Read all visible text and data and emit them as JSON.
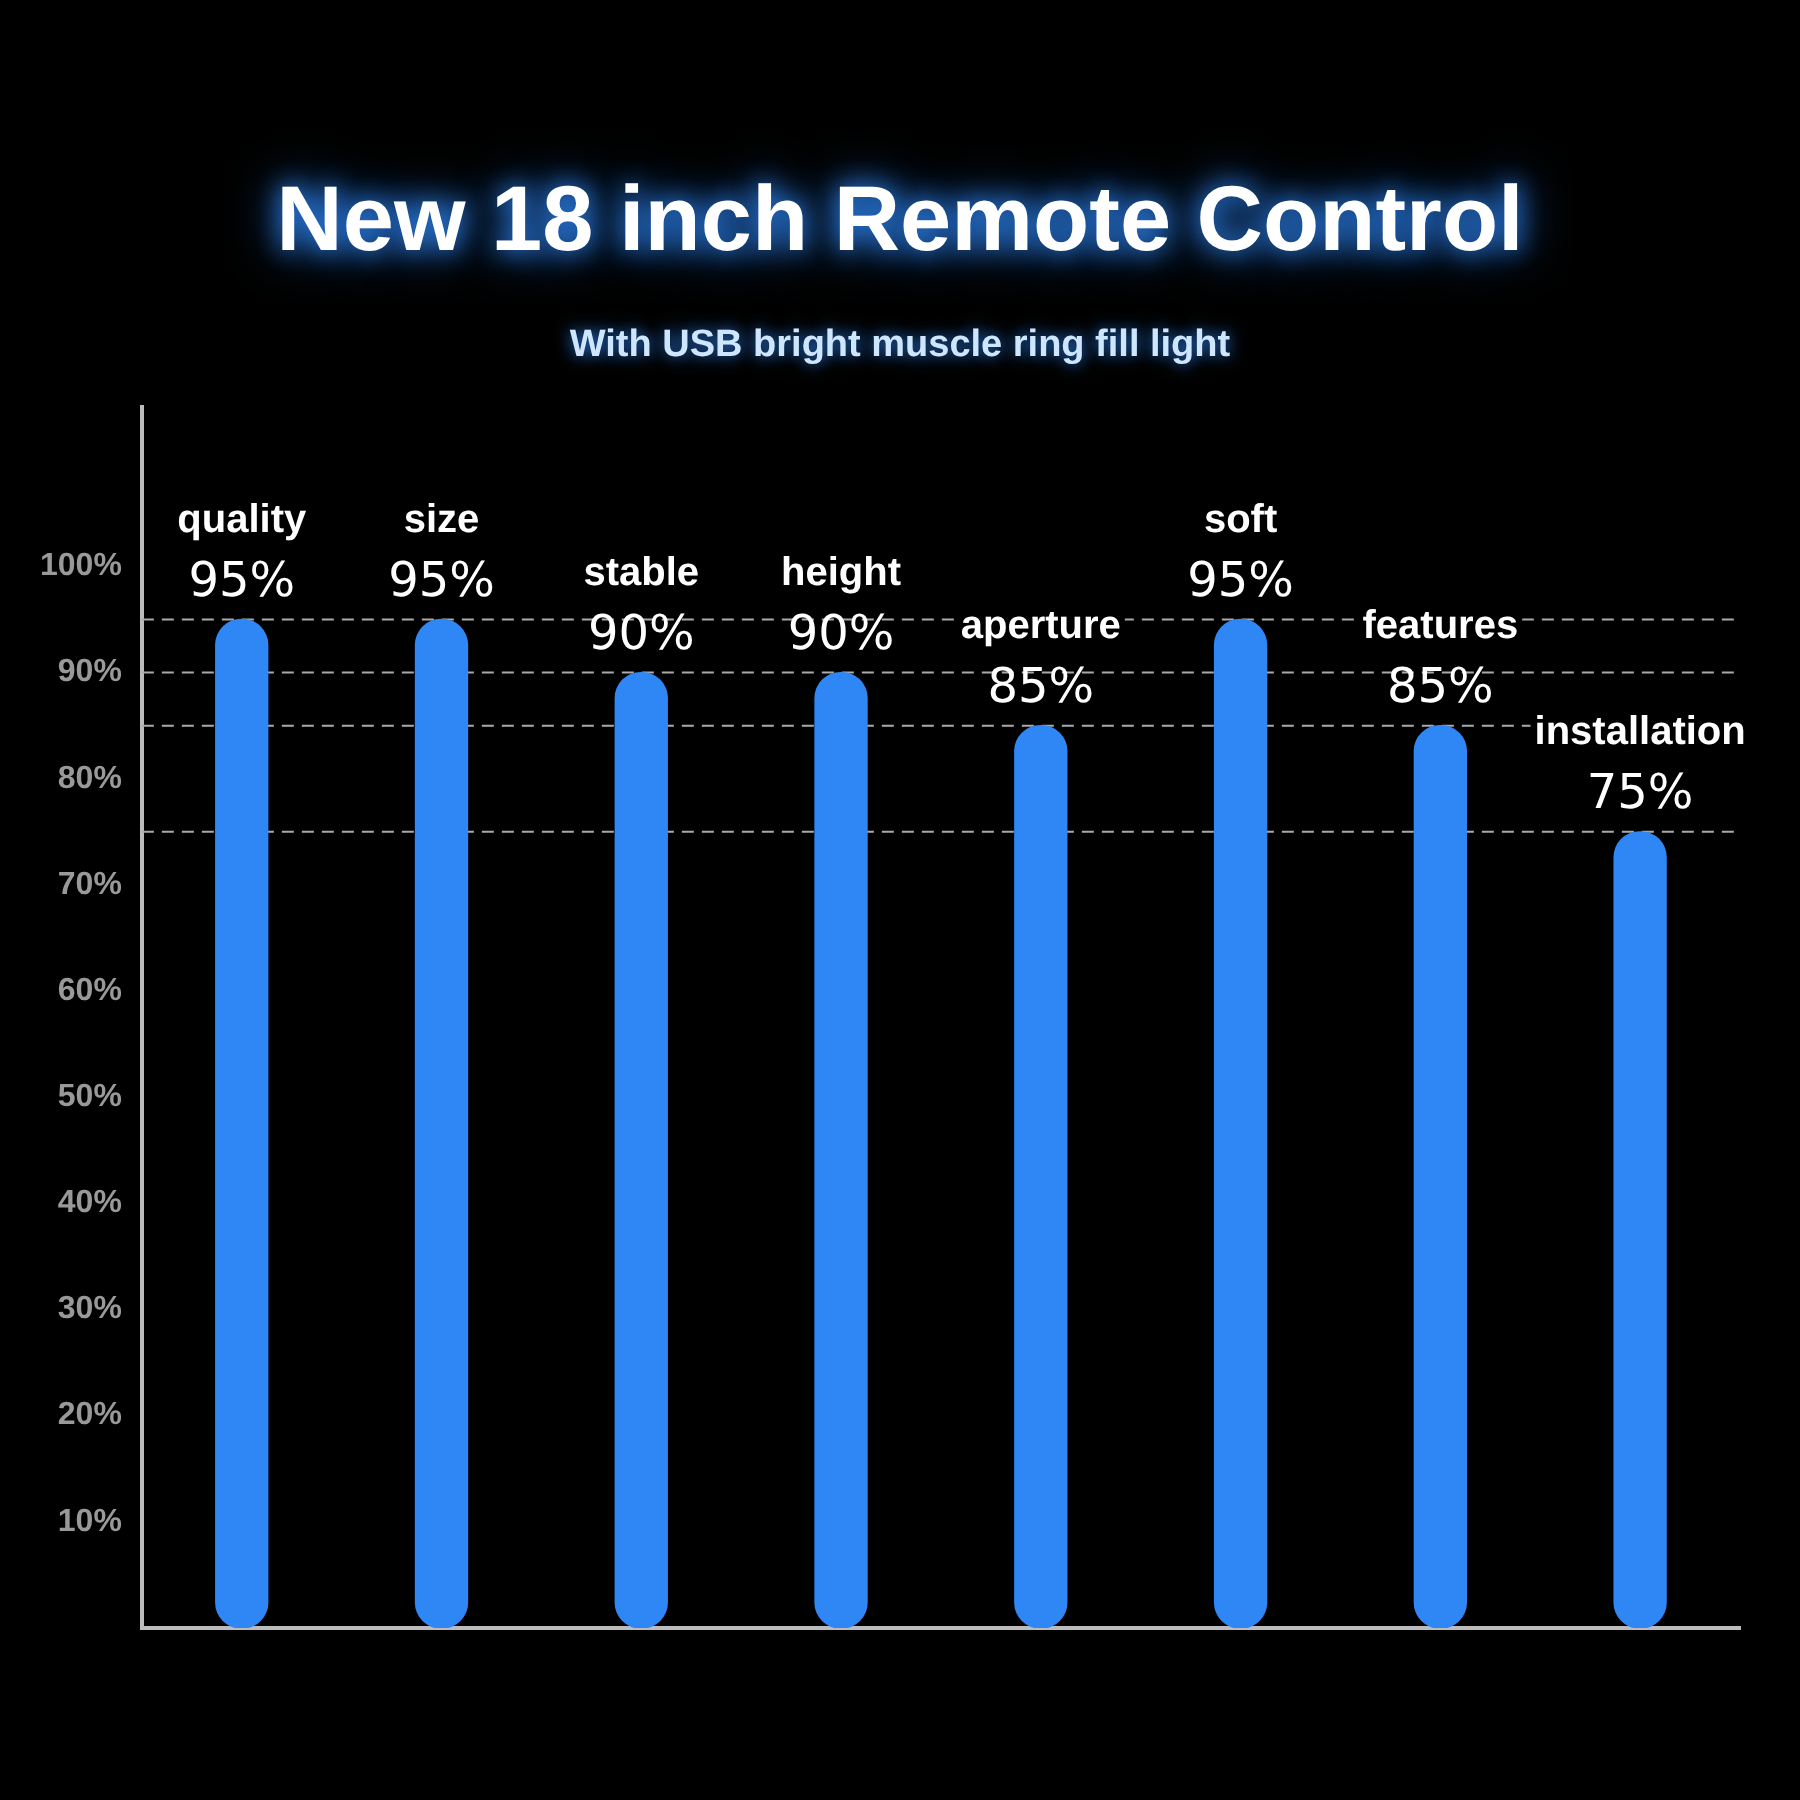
{
  "chart_data": {
    "type": "bar",
    "title": "New 18 inch Remote Control",
    "subtitle": "With USB bright muscle ring fill light",
    "categories": [
      "quality",
      "size",
      "stable",
      "height",
      "aperture",
      "soft",
      "features",
      "installation"
    ],
    "values": [
      95,
      95,
      90,
      90,
      85,
      95,
      85,
      75
    ],
    "value_labels": [
      "95%",
      "95%",
      "90%",
      "90%",
      "85%",
      "95%",
      "85%",
      "75%"
    ],
    "color": "#2f86f5",
    "ylim": [
      0,
      115
    ],
    "yticks": [
      {
        "value": 10,
        "label": "10%"
      },
      {
        "value": 20,
        "label": "20%"
      },
      {
        "value": 30,
        "label": "30%"
      },
      {
        "value": 40,
        "label": "40%"
      },
      {
        "value": 50,
        "label": "50%"
      },
      {
        "value": 60,
        "label": "60%"
      },
      {
        "value": 70,
        "label": "70%"
      },
      {
        "value": 80,
        "label": "80%"
      },
      {
        "value": 90,
        "label": "90%"
      },
      {
        "value": 100,
        "label": "100%"
      }
    ],
    "tick_labels": "y",
    "ref_lines": [
      {
        "axis": "y",
        "value": 95,
        "color": "#aaaaaa",
        "line_style": "dashed"
      },
      {
        "axis": "y",
        "value": 90,
        "color": "#aaaaaa",
        "line_style": "dashed"
      },
      {
        "axis": "y",
        "value": 85,
        "color": "#aaaaaa",
        "line_style": "dashed"
      },
      {
        "axis": "y",
        "value": 75,
        "color": "#aaaaaa",
        "line_style": "dashed"
      }
    ]
  }
}
